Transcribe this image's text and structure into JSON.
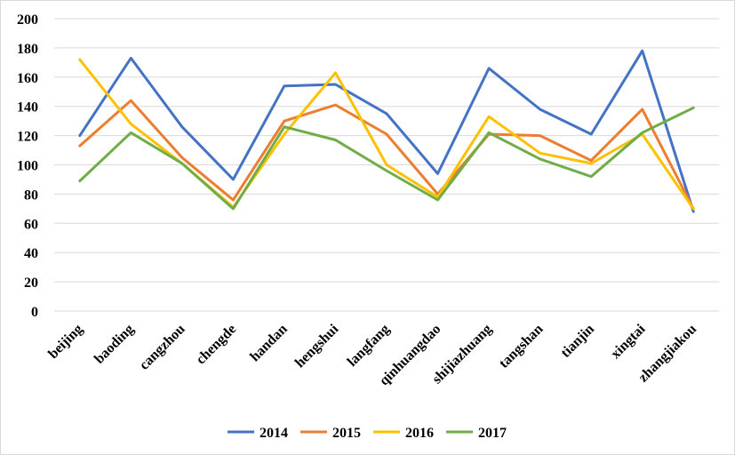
{
  "chart_data": {
    "type": "line",
    "title": "",
    "xlabel": "",
    "ylabel": "",
    "categories": [
      "beijing",
      "baoding",
      "cangzhou",
      "chengde",
      "handan",
      "hengshui",
      "langfang",
      "qinhuangdao",
      "shijiazhuang",
      "tangshan",
      "tianjin",
      "xingtai",
      "zhangjiakou"
    ],
    "ylim": [
      0,
      200
    ],
    "yticks": [
      "0",
      "20",
      "40",
      "60",
      "80",
      "100",
      "120",
      "140",
      "160",
      "180",
      "200"
    ],
    "grid": true,
    "legend_position": "bottom",
    "series": [
      {
        "name": "2014",
        "color": "#4472c4",
        "values": [
          120,
          173,
          126,
          90,
          154,
          155,
          135,
          94,
          166,
          138,
          121,
          178,
          68
        ]
      },
      {
        "name": "2015",
        "color": "#ed7d31",
        "values": [
          113,
          144,
          105,
          76,
          130,
          141,
          121,
          80,
          121,
          120,
          103,
          138,
          70
        ]
      },
      {
        "name": "2016",
        "color": "#ffc000",
        "values": [
          172,
          128,
          101,
          71,
          121,
          163,
          100,
          78,
          133,
          108,
          101,
          121,
          70
        ]
      },
      {
        "name": "2017",
        "color": "#70ad47",
        "values": [
          89,
          122,
          101,
          70,
          126,
          117,
          96,
          76,
          122,
          104,
          92,
          122,
          139
        ]
      }
    ]
  }
}
